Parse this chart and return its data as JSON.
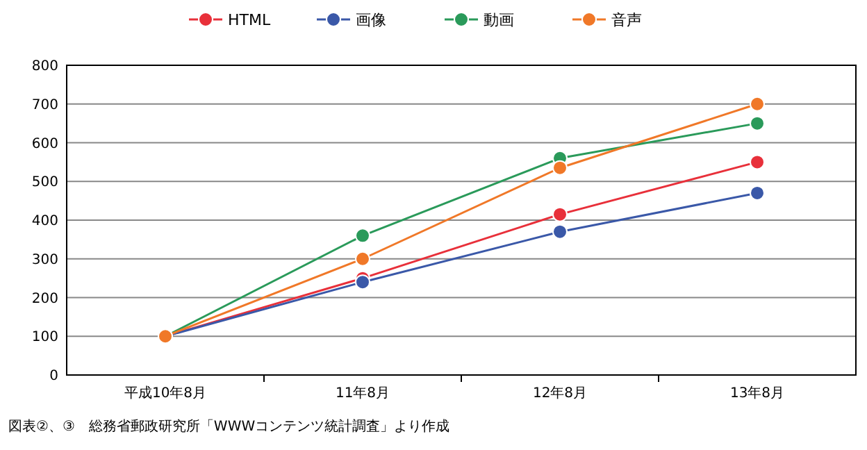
{
  "chart_data": {
    "type": "line",
    "categories": [
      "平成10年8月",
      "11年8月",
      "12年8月",
      "13年8月"
    ],
    "series": [
      {
        "name": "HTML",
        "color": "#e8303a",
        "values": [
          100,
          250,
          415,
          550
        ]
      },
      {
        "name": "画像",
        "color": "#3a58a8",
        "values": [
          100,
          240,
          370,
          470
        ]
      },
      {
        "name": "動画",
        "color": "#2a9a5a",
        "values": [
          100,
          360,
          560,
          650
        ]
      },
      {
        "name": "音声",
        "color": "#f07828",
        "values": [
          100,
          300,
          535,
          700
        ]
      }
    ],
    "ylim": [
      0,
      800
    ],
    "yticks": [
      0,
      100,
      200,
      300,
      400,
      500,
      600,
      700,
      800
    ],
    "grid": "y",
    "legend": "top",
    "marker": "circle",
    "line_style": "solid",
    "annotations": [
      "図表②、③　総務省郵政研究所「WWWコンテンツ統計調査」より作成"
    ]
  }
}
